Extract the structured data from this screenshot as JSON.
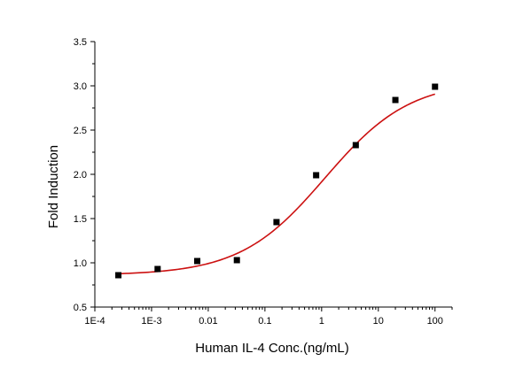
{
  "chart_data": {
    "type": "scatter",
    "xlabel": "Human IL-4 Conc.(ng/mL)",
    "ylabel": "Fold Induction",
    "x_scale": "log",
    "xlim": [
      0.0001,
      200
    ],
    "ylim": [
      0.5,
      3.5
    ],
    "x_ticks": [
      {
        "value": 0.0001,
        "label": "1E-4"
      },
      {
        "value": 0.001,
        "label": "1E-3"
      },
      {
        "value": 0.01,
        "label": "0.01"
      },
      {
        "value": 0.1,
        "label": "0.1"
      },
      {
        "value": 1,
        "label": "1"
      },
      {
        "value": 10,
        "label": "10"
      },
      {
        "value": 100,
        "label": "100"
      }
    ],
    "y_ticks": [
      {
        "value": 0.5,
        "label": "0.5"
      },
      {
        "value": 1.0,
        "label": "1.0"
      },
      {
        "value": 1.5,
        "label": "1.5"
      },
      {
        "value": 2.0,
        "label": "2.0"
      },
      {
        "value": 2.5,
        "label": "2.5"
      },
      {
        "value": 3.0,
        "label": "3.0"
      },
      {
        "value": 3.5,
        "label": "3.5"
      }
    ],
    "points": [
      {
        "x": 0.00026,
        "y": 0.86
      },
      {
        "x": 0.00128,
        "y": 0.93
      },
      {
        "x": 0.0064,
        "y": 1.02
      },
      {
        "x": 0.032,
        "y": 1.03
      },
      {
        "x": 0.16,
        "y": 1.46
      },
      {
        "x": 0.8,
        "y": 1.99
      },
      {
        "x": 4.0,
        "y": 2.33
      },
      {
        "x": 20,
        "y": 2.84
      },
      {
        "x": 100,
        "y": 2.99
      }
    ],
    "fit_curve": {
      "model": "4PL",
      "bottom": 0.86,
      "top": 3.06,
      "ec50": 1.15,
      "hill": 0.58,
      "x_range": [
        0.00026,
        100
      ]
    },
    "grid": false,
    "legend": "none",
    "marker_color": "#000000",
    "curve_color": "#cc1111"
  }
}
